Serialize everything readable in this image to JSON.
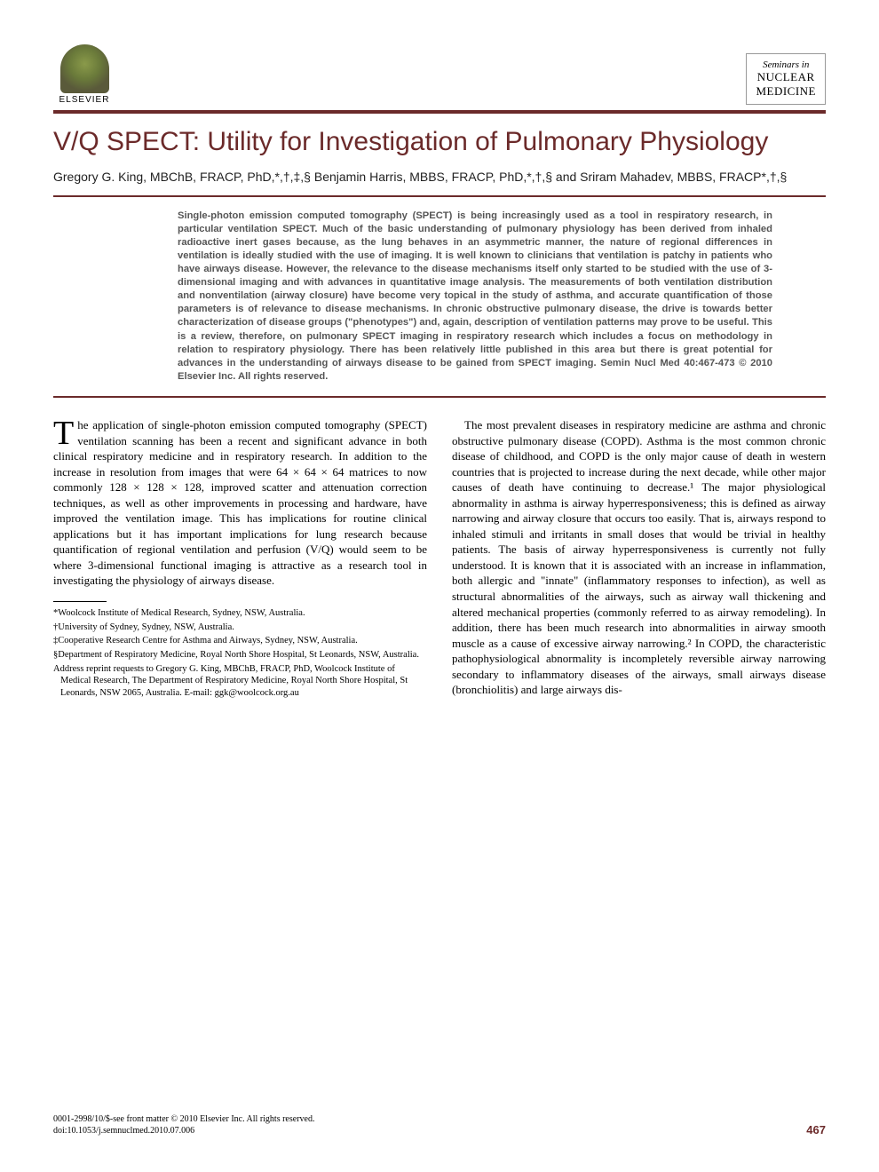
{
  "publisher": {
    "name": "ELSEVIER"
  },
  "journal": {
    "line1": "Seminars in",
    "line2": "NUCLEAR",
    "line3": "MEDICINE"
  },
  "article": {
    "title": "V/Q SPECT: Utility for Investigation of Pulmonary Physiology",
    "authors_html": "Gregory G. King, MBChB, FRACP, PhD,*,†,‡,§ Benjamin Harris, MBBS, FRACP, PhD,*,†,§ and Sriram Mahadev, MBBS, FRACP*,†,§",
    "abstract": "Single-photon emission computed tomography (SPECT) is being increasingly used as a tool in respiratory research, in particular ventilation SPECT. Much of the basic understanding of pulmonary physiology has been derived from inhaled radioactive inert gases because, as the lung behaves in an asymmetric manner, the nature of regional differences in ventilation is ideally studied with the use of imaging. It is well known to clinicians that ventilation is patchy in patients who have airways disease. However, the relevance to the disease mechanisms itself only started to be studied with the use of 3-dimensional imaging and with advances in quantitative image analysis. The measurements of both ventilation distribution and nonventilation (airway closure) have become very topical in the study of asthma, and accurate quantification of those parameters is of relevance to disease mechanisms. In chronic obstructive pulmonary disease, the drive is towards better characterization of disease groups (\"phenotypes\") and, again, description of ventilation patterns may prove to be useful. This is a review, therefore, on pulmonary SPECT imaging in respiratory research which includes a focus on methodology in relation to respiratory physiology. There has been relatively little published in this area but there is great potential for advances in the understanding of airways disease to be gained from SPECT imaging. Semin Nucl Med 40:467-473 © 2010 Elsevier Inc. All rights reserved.",
    "body_col1_dropcap": "T",
    "body_col1": "he application of single-photon emission computed tomography (SPECT) ventilation scanning has been a recent and significant advance in both clinical respiratory medicine and in respiratory research. In addition to the increase in resolution from images that were 64 × 64 × 64 matrices to now commonly 128 × 128 × 128, improved scatter and attenuation correction techniques, as well as other improvements in processing and hardware, have improved the ventilation image. This has implications for routine clinical applications but it has important implications for lung research because quantification of regional ventilation and perfusion (V/Q) would seem to be where 3-dimensional functional imaging is attractive as a research tool in investigating the physiology of airways disease.",
    "body_col2": "The most prevalent diseases in respiratory medicine are asthma and chronic obstructive pulmonary disease (COPD). Asthma is the most common chronic disease of childhood, and COPD is the only major cause of death in western countries that is projected to increase during the next decade, while other major causes of death have continuing to decrease.¹ The major physiological abnormality in asthma is airway hyperresponsiveness; this is defined as airway narrowing and airway closure that occurs too easily. That is, airways respond to inhaled stimuli and irritants in small doses that would be trivial in healthy patients. The basis of airway hyperresponsiveness is currently not fully understood. It is known that it is associated with an increase in inflammation, both allergic and \"innate\" (inflammatory responses to infection), as well as structural abnormalities of the airways, such as airway wall thickening and altered mechanical properties (commonly referred to as airway remodeling). In addition, there has been much research into abnormalities in airway smooth muscle as a cause of excessive airway narrowing.² In COPD, the characteristic pathophysiological abnormality is incompletely reversible airway narrowing secondary to inflammatory diseases of the airways, small airways disease (bronchiolitis) and large airways dis-"
  },
  "affiliations": {
    "a1": "*Woolcock Institute of Medical Research, Sydney, NSW, Australia.",
    "a2": "†University of Sydney, Sydney, NSW, Australia.",
    "a3": "‡Cooperative Research Centre for Asthma and Airways, Sydney, NSW, Australia.",
    "a4": "§Department of Respiratory Medicine, Royal North Shore Hospital, St Leonards, NSW, Australia.",
    "reprint": "Address reprint requests to Gregory G. King, MBChB, FRACP, PhD, Woolcock Institute of Medical Research, The Department of Respiratory Medicine, Royal North Shore Hospital, St Leonards, NSW 2065, Australia. E-mail: ggk@woolcock.org.au"
  },
  "footer": {
    "issn_line": "0001-2998/10/$-see front matter © 2010 Elsevier Inc. All rights reserved.",
    "doi_line": "doi:10.1053/j.semnuclmed.2010.07.006",
    "page": "467"
  },
  "colors": {
    "accent": "#6b2a2a",
    "abstract_text": "#555555",
    "body_text": "#000000"
  }
}
